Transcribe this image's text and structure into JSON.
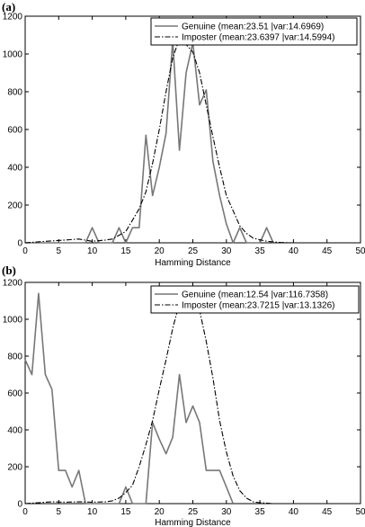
{
  "panels": [
    {
      "label": "(a)"
    },
    {
      "label": "(b)"
    }
  ],
  "chart_data": [
    {
      "type": "line",
      "panel": "(a)",
      "xlabel": "Hamming Distance",
      "ylabel": "",
      "xlim": [
        0,
        50
      ],
      "ylim": [
        0,
        1200
      ],
      "xticks": [
        0,
        5,
        10,
        15,
        20,
        25,
        30,
        35,
        40,
        45,
        50
      ],
      "yticks": [
        0,
        200,
        400,
        600,
        800,
        1000,
        1200
      ],
      "grid": false,
      "legend_position": "top-right",
      "series": [
        {
          "name": "Genuine (mean:23.51 |var:14.6969)",
          "style": "solid",
          "color": "#777777",
          "x": [
            0,
            9,
            10,
            11,
            13,
            14,
            15,
            16,
            17,
            18,
            19,
            20,
            21,
            22,
            23,
            24,
            25,
            26,
            27,
            28,
            29,
            30,
            31,
            32,
            33,
            34,
            35,
            36,
            37
          ],
          "y": [
            0,
            0,
            80,
            0,
            0,
            80,
            0,
            80,
            80,
            570,
            250,
            400,
            580,
            1070,
            490,
            900,
            1060,
            730,
            810,
            430,
            250,
            100,
            0,
            80,
            0,
            0,
            0,
            80,
            0
          ]
        },
        {
          "name": "Imposter (mean:23.6397 |var:14.5994)",
          "style": "dashdot",
          "color": "#000000",
          "x": [
            0,
            2,
            4,
            6,
            8,
            10,
            12,
            13,
            14,
            15,
            16,
            17,
            18,
            19,
            20,
            21,
            22,
            23,
            24,
            25,
            26,
            27,
            28,
            29,
            30,
            31,
            32,
            33,
            34,
            36,
            38,
            40
          ],
          "y": [
            0,
            5,
            10,
            15,
            20,
            8,
            15,
            20,
            40,
            60,
            120,
            180,
            270,
            420,
            600,
            800,
            980,
            1080,
            1050,
            1010,
            900,
            730,
            560,
            400,
            250,
            170,
            90,
            50,
            25,
            8,
            2,
            0
          ]
        }
      ]
    },
    {
      "type": "line",
      "panel": "(b)",
      "xlabel": "Hamming Distance",
      "ylabel": "",
      "xlim": [
        0,
        50
      ],
      "ylim": [
        0,
        1200
      ],
      "xticks": [
        0,
        5,
        10,
        15,
        20,
        25,
        30,
        35,
        40,
        45,
        50
      ],
      "yticks": [
        0,
        200,
        400,
        600,
        800,
        1000,
        1200
      ],
      "grid": false,
      "legend_position": "top-right",
      "series": [
        {
          "name": "Genuine (mean:12.54 |var:116.7358)",
          "style": "solid",
          "color": "#777777",
          "x": [
            0,
            1,
            2,
            3,
            4,
            5,
            6,
            7,
            8,
            9,
            10,
            14,
            15,
            16,
            17,
            18,
            19,
            20,
            21,
            22,
            23,
            24,
            25,
            26,
            27,
            28,
            29,
            30,
            31
          ],
          "y": [
            780,
            700,
            1140,
            700,
            620,
            180,
            180,
            90,
            180,
            0,
            0,
            0,
            90,
            0,
            0,
            0,
            440,
            350,
            270,
            360,
            700,
            440,
            530,
            440,
            180,
            180,
            180,
            90,
            0
          ]
        },
        {
          "name": "Imposter (mean:23.7215 |var:13.1326)",
          "style": "dashdot",
          "color": "#000000",
          "x": [
            0,
            2,
            4,
            6,
            8,
            10,
            12,
            13,
            14,
            15,
            16,
            17,
            18,
            19,
            20,
            21,
            22,
            23,
            24,
            25,
            26,
            27,
            28,
            29,
            30,
            31,
            32,
            33,
            34,
            35,
            37,
            40
          ],
          "y": [
            0,
            5,
            10,
            8,
            10,
            8,
            10,
            15,
            30,
            60,
            100,
            200,
            320,
            450,
            620,
            780,
            950,
            1090,
            1120,
            1120,
            1050,
            880,
            680,
            450,
            280,
            150,
            70,
            30,
            10,
            5,
            0,
            0
          ]
        }
      ]
    }
  ]
}
